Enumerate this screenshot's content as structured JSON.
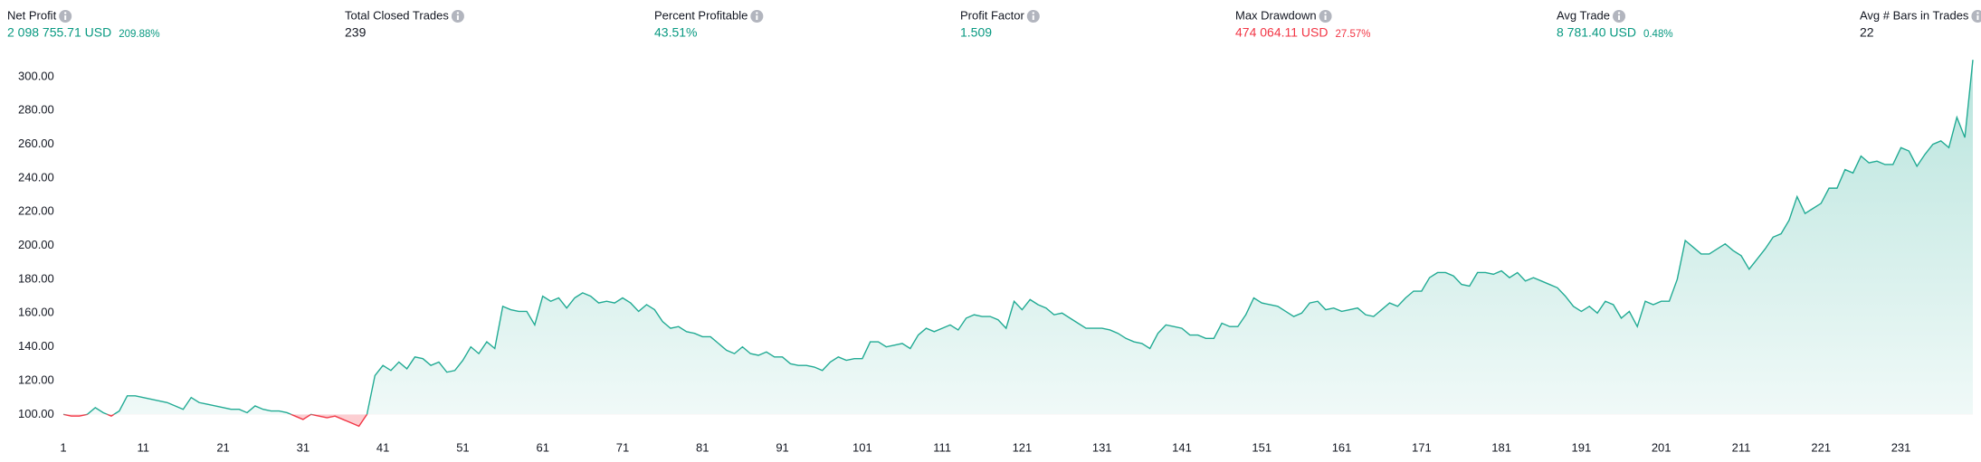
{
  "stats": [
    {
      "label": "Net Profit",
      "value": "2 098 755.71 USD",
      "secondary": "209.88%",
      "color": "#089981"
    },
    {
      "label": "Total Closed Trades",
      "value": "239",
      "color": "#131722"
    },
    {
      "label": "Percent Profitable",
      "value": "43.51%",
      "color": "#089981"
    },
    {
      "label": "Profit Factor",
      "value": "1.509",
      "color": "#089981"
    },
    {
      "label": "Max Drawdown",
      "value": "474 064.11 USD",
      "secondary": "27.57%",
      "color": "#f23645"
    },
    {
      "label": "Avg Trade",
      "value": "8 781.40 USD",
      "secondary": "0.48%",
      "color": "#089981"
    },
    {
      "label": "Avg # Bars in Trades",
      "value": "22",
      "color": "#131722"
    }
  ],
  "chart_data": {
    "type": "area",
    "x": [
      1,
      2,
      3,
      4,
      5,
      6,
      7,
      8,
      9,
      10,
      11,
      12,
      13,
      14,
      15,
      16,
      17,
      18,
      19,
      20,
      21,
      22,
      23,
      24,
      25,
      26,
      27,
      28,
      29,
      30,
      31,
      32,
      33,
      34,
      35,
      36,
      37,
      38,
      39,
      40,
      41,
      42,
      43,
      44,
      45,
      46,
      47,
      48,
      49,
      50,
      51,
      52,
      53,
      54,
      55,
      56,
      57,
      58,
      59,
      60,
      61,
      62,
      63,
      64,
      65,
      66,
      67,
      68,
      69,
      70,
      71,
      72,
      73,
      74,
      75,
      76,
      77,
      78,
      79,
      80,
      81,
      82,
      83,
      84,
      85,
      86,
      87,
      88,
      89,
      90,
      91,
      92,
      93,
      94,
      95,
      96,
      97,
      98,
      99,
      100,
      101,
      102,
      103,
      104,
      105,
      106,
      107,
      108,
      109,
      110,
      111,
      112,
      113,
      114,
      115,
      116,
      117,
      118,
      119,
      120,
      121,
      122,
      123,
      124,
      125,
      126,
      127,
      128,
      129,
      130,
      131,
      132,
      133,
      134,
      135,
      136,
      137,
      138,
      139,
      140,
      141,
      142,
      143,
      144,
      145,
      146,
      147,
      148,
      149,
      150,
      151,
      152,
      153,
      154,
      155,
      156,
      157,
      158,
      159,
      160,
      161,
      162,
      163,
      164,
      165,
      166,
      167,
      168,
      169,
      170,
      171,
      172,
      173,
      174,
      175,
      176,
      177,
      178,
      179,
      180,
      181,
      182,
      183,
      184,
      185,
      186,
      187,
      188,
      189,
      190,
      191,
      192,
      193,
      194,
      195,
      196,
      197,
      198,
      199,
      200,
      201,
      202,
      203,
      204,
      205,
      206,
      207,
      208,
      209,
      210,
      211,
      212,
      213,
      214,
      215,
      216,
      217,
      218,
      219,
      220,
      221,
      222,
      223,
      224,
      225,
      226,
      227,
      228,
      229,
      230,
      231,
      232,
      233,
      234,
      235,
      236,
      237,
      238,
      239,
      240
    ],
    "values": [
      100,
      99,
      99,
      100,
      104,
      101,
      99,
      102,
      111,
      111,
      110,
      109,
      108,
      107,
      105,
      103,
      110,
      107,
      106,
      105,
      104,
      103,
      103,
      101,
      105,
      103,
      102,
      102,
      101,
      99,
      97,
      100,
      99,
      98,
      99,
      97,
      95,
      93,
      100,
      123,
      129,
      126,
      131,
      127,
      134,
      133,
      129,
      131,
      125,
      126,
      132,
      140,
      136,
      143,
      139,
      164,
      162,
      161,
      161,
      153,
      170,
      167,
      169,
      163,
      169,
      172,
      170,
      166,
      167,
      166,
      169,
      166,
      161,
      165,
      162,
      155,
      151,
      152,
      149,
      148,
      146,
      146,
      142,
      138,
      136,
      140,
      136,
      135,
      137,
      134,
      134,
      130,
      129,
      129,
      128,
      126,
      131,
      134,
      132,
      133,
      133,
      143,
      143,
      140,
      141,
      142,
      139,
      147,
      151,
      149,
      151,
      153,
      150,
      157,
      159,
      158,
      158,
      156,
      151,
      167,
      162,
      168,
      165,
      163,
      159,
      160,
      157,
      154,
      151,
      151,
      151,
      150,
      148,
      145,
      143,
      142,
      139,
      148,
      153,
      152,
      151,
      147,
      147,
      145,
      145,
      154,
      152,
      152,
      159,
      169,
      166,
      165,
      164,
      161,
      158,
      160,
      166,
      167,
      162,
      163,
      161,
      162,
      163,
      159,
      158,
      162,
      166,
      164,
      169,
      173,
      173,
      181,
      184,
      184,
      182,
      177,
      176,
      184,
      184,
      183,
      185,
      181,
      184,
      179,
      181,
      179,
      177,
      175,
      170,
      164,
      161,
      164,
      160,
      167,
      165,
      157,
      161,
      152,
      167,
      165,
      167,
      167,
      180,
      203,
      199,
      195,
      195,
      198,
      201,
      197,
      194,
      186,
      192,
      198,
      205,
      207,
      215,
      229,
      219,
      222,
      225,
      234,
      234,
      245,
      243,
      253,
      249,
      250,
      248,
      248,
      258,
      256,
      247,
      254,
      260,
      262,
      258,
      276,
      264,
      310
    ],
    "baseline": 100,
    "color": "#22ab94",
    "negative_color": "#f23645",
    "xlim": [
      1,
      240
    ],
    "xticks": [
      1,
      11,
      21,
      31,
      41,
      51,
      61,
      71,
      81,
      91,
      101,
      111,
      121,
      131,
      141,
      151,
      161,
      171,
      181,
      191,
      201,
      211,
      221,
      231
    ],
    "ylim": [
      90,
      316
    ],
    "yticks": [
      {
        "value": 100,
        "label": "100.00"
      },
      {
        "value": 120,
        "label": "120.00"
      },
      {
        "value": 140,
        "label": "140.00"
      },
      {
        "value": 160,
        "label": "160.00"
      },
      {
        "value": 180,
        "label": "180.00"
      },
      {
        "value": 200,
        "label": "200.00"
      },
      {
        "value": 220,
        "label": "220.00"
      },
      {
        "value": 240,
        "label": "240.00"
      },
      {
        "value": 260,
        "label": "260.00"
      },
      {
        "value": 280,
        "label": "280.00"
      },
      {
        "value": 300,
        "label": "300.00"
      }
    ]
  }
}
